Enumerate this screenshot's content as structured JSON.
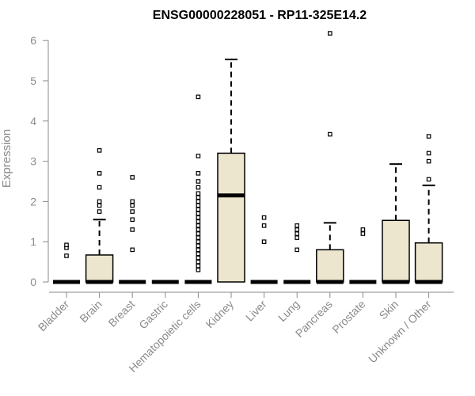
{
  "chart_data": {
    "type": "box",
    "title": "ENSG00000228051 - RP11-325E14.2",
    "ylabel": "Expression",
    "xlabel": "",
    "ylim": [
      0,
      6
    ],
    "yticks": [
      0,
      1,
      2,
      3,
      4,
      5,
      6
    ],
    "box_fill": "#ede6cf",
    "box_stroke": "#000000",
    "categories": [
      "Bladder",
      "Brain",
      "Breast",
      "Gastric",
      "Hematopoietic cells",
      "Kidney",
      "Liver",
      "Lung",
      "Pancreas",
      "Prostate",
      "Skin",
      "Unknown / Other"
    ],
    "boxes": [
      {
        "name": "Bladder",
        "q1": 0,
        "median": 0,
        "q3": 0,
        "whisker_low": 0,
        "whisker_high": 0,
        "outliers": [
          0.65,
          0.85,
          0.92
        ]
      },
      {
        "name": "Brain",
        "q1": 0,
        "median": 0,
        "q3": 0.67,
        "whisker_low": 0,
        "whisker_high": 1.55,
        "outliers": [
          1.75,
          1.9,
          2.0,
          2.35,
          2.7,
          3.27
        ]
      },
      {
        "name": "Breast",
        "q1": 0,
        "median": 0,
        "q3": 0,
        "whisker_low": 0,
        "whisker_high": 0,
        "outliers": [
          0.8,
          1.3,
          1.55,
          1.75,
          1.9,
          2.0,
          2.6
        ]
      },
      {
        "name": "Gastric",
        "q1": 0,
        "median": 0,
        "q3": 0,
        "whisker_low": 0,
        "whisker_high": 0,
        "outliers": []
      },
      {
        "name": "Hematopoietic cells",
        "q1": 0,
        "median": 0,
        "q3": 0,
        "whisker_low": 0,
        "whisker_high": 0,
        "outliers": [
          0.3,
          0.4,
          0.5,
          0.6,
          0.7,
          0.8,
          0.9,
          1.0,
          1.1,
          1.2,
          1.3,
          1.4,
          1.5,
          1.6,
          1.7,
          1.8,
          1.9,
          2.0,
          2.1,
          2.2,
          2.35,
          2.5,
          2.7,
          3.13,
          4.6
        ]
      },
      {
        "name": "Kidney",
        "q1": 0,
        "median": 2.15,
        "q3": 3.2,
        "whisker_low": 0,
        "whisker_high": 5.53,
        "outliers": []
      },
      {
        "name": "Liver",
        "q1": 0,
        "median": 0,
        "q3": 0,
        "whisker_low": 0,
        "whisker_high": 0,
        "outliers": [
          1.0,
          1.4,
          1.6
        ]
      },
      {
        "name": "Lung",
        "q1": 0,
        "median": 0,
        "q3": 0,
        "whisker_low": 0,
        "whisker_high": 0,
        "outliers": [
          0.8,
          1.1,
          1.2,
          1.3,
          1.4
        ]
      },
      {
        "name": "Pancreas",
        "q1": 0,
        "median": 0,
        "q3": 0.8,
        "whisker_low": 0,
        "whisker_high": 1.47,
        "outliers": [
          3.67,
          6.18
        ]
      },
      {
        "name": "Prostate",
        "q1": 0,
        "median": 0,
        "q3": 0,
        "whisker_low": 0,
        "whisker_high": 0,
        "outliers": [
          1.2,
          1.3
        ]
      },
      {
        "name": "Skin",
        "q1": 0,
        "median": 0,
        "q3": 1.53,
        "whisker_low": 0,
        "whisker_high": 2.93,
        "outliers": []
      },
      {
        "name": "Unknown / Other",
        "q1": 0,
        "median": 0,
        "q3": 0.97,
        "whisker_low": 0,
        "whisker_high": 2.4,
        "outliers": [
          2.55,
          3.0,
          3.2,
          3.62
        ]
      }
    ]
  }
}
